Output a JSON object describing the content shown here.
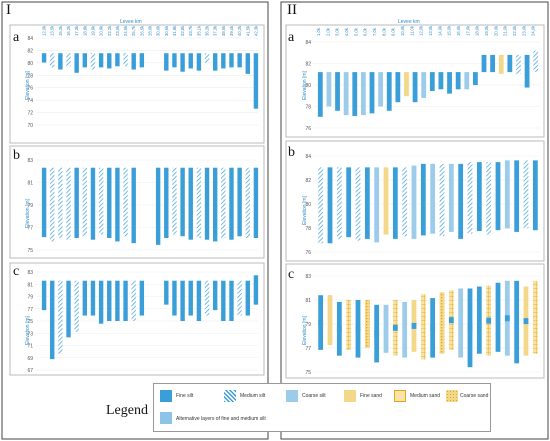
{
  "figure": {
    "col_left": "I",
    "col_right": "II",
    "col_left_axis": "Levee km",
    "col_right_axis": "Levee km",
    "y_label": "Elevation [m]"
  },
  "panels_left": [
    {
      "letter": "a",
      "ticks": [
        "84",
        "82",
        "80",
        "78",
        "76",
        "74",
        "72",
        "70"
      ],
      "ymin": 69,
      "ymax": 85,
      "bars": [
        [
          80.5,
          82.2,
          "fine"
        ],
        [
          79.6,
          82.2,
          "medium"
        ],
        [
          79.2,
          82.2,
          "fine"
        ],
        [
          79.8,
          82.2,
          "medium"
        ],
        [
          78.6,
          82.2,
          "fine"
        ],
        [
          79.6,
          82.2,
          "fine"
        ],
        [
          79.2,
          82.2,
          "medium"
        ],
        [
          79.6,
          82.2,
          "fine"
        ],
        [
          79.4,
          82.2,
          "fine"
        ],
        [
          79.8,
          82.2,
          "fine"
        ],
        [
          79.8,
          82.2,
          "medium"
        ],
        [
          79.2,
          82.2,
          "fine"
        ],
        [
          79.6,
          82.2,
          "fine"
        ],
        [
          null,
          null,
          ""
        ],
        [
          null,
          null,
          ""
        ],
        [
          79.0,
          82.2,
          "fine"
        ],
        [
          79.6,
          82.2,
          "fine"
        ],
        [
          78.8,
          82.2,
          "fine"
        ],
        [
          79.4,
          82.2,
          "fine"
        ],
        [
          79.0,
          82.2,
          "fine"
        ],
        [
          80.4,
          82.2,
          "medium"
        ],
        [
          79.0,
          82.2,
          "fine"
        ],
        [
          79.4,
          82.2,
          "fine"
        ],
        [
          79.6,
          82.2,
          "fine"
        ],
        [
          79.6,
          82.2,
          "fine"
        ],
        [
          78.4,
          82.2,
          "fine"
        ],
        [
          72.0,
          82.2,
          "fine"
        ]
      ],
      "axis_top": [
        "12,0k",
        "13,5k",
        "15,3k",
        "16,2k",
        "17,3k",
        "18,8k",
        "19,9k",
        "20,9k",
        "22,2k",
        "23,0k",
        "24,5k",
        "25,7k",
        "26,5k",
        "28,0k",
        "30,0k",
        "30,6k",
        "31,8k",
        "32,8k",
        "33,7k",
        "35,1k",
        "36,2k",
        "37,3k",
        "38,5k",
        "39,4k",
        "40,2k",
        "41,5k",
        "42,3k"
      ]
    },
    {
      "letter": "b",
      "ticks": [
        "83",
        "81",
        "79",
        "77",
        "75"
      ],
      "ymin": 74,
      "ymax": 84.5,
      "bars": [
        [
          75.5,
          83.6,
          "fine"
        ],
        [
          75.0,
          83.6,
          "medium"
        ],
        [
          75.4,
          83.6,
          "medium"
        ],
        [
          75.2,
          83.6,
          "medium"
        ],
        [
          75.4,
          83.6,
          "fine"
        ],
        [
          75.6,
          83.6,
          "medium"
        ],
        [
          75.2,
          83.6,
          "fine"
        ],
        [
          75.8,
          83.6,
          "medium"
        ],
        [
          75.4,
          83.6,
          "fine"
        ],
        [
          75.0,
          83.6,
          "fine"
        ],
        [
          75.6,
          83.6,
          "medium"
        ],
        [
          74.8,
          83.6,
          "fine"
        ],
        [
          null,
          null,
          ""
        ],
        [
          null,
          null,
          ""
        ],
        [
          74.6,
          83.6,
          "fine"
        ],
        [
          75.4,
          83.6,
          "fine"
        ],
        [
          75.8,
          83.6,
          "medium"
        ],
        [
          75.6,
          83.6,
          "fine"
        ],
        [
          75.2,
          83.6,
          "fine"
        ],
        [
          75.4,
          83.6,
          "medium"
        ],
        [
          75.2,
          83.6,
          "fine"
        ],
        [
          75.0,
          83.6,
          "fine"
        ],
        [
          75.4,
          83.6,
          "medium"
        ],
        [
          75.2,
          83.6,
          "fine"
        ],
        [
          75.6,
          83.6,
          "fine"
        ],
        [
          75.4,
          83.6,
          "medium"
        ],
        [
          75.4,
          83.6,
          "fine"
        ]
      ]
    },
    {
      "letter": "c",
      "ticks": [
        "83",
        "81",
        "79",
        "77",
        "75",
        "73",
        "71",
        "69",
        "67"
      ],
      "ymin": 66,
      "ymax": 84,
      "bars": [
        [
          77.0,
          82.4,
          "fine"
        ],
        [
          68.0,
          82.4,
          "fine"
        ],
        [
          69.0,
          82.4,
          "medium"
        ],
        [
          72.0,
          82.4,
          "fine"
        ],
        [
          73.0,
          82.4,
          "medium"
        ],
        [
          76.0,
          82.4,
          "fine"
        ],
        [
          76.0,
          82.4,
          "fine"
        ],
        [
          74.5,
          82.4,
          "fine"
        ],
        [
          75.0,
          82.4,
          "fine"
        ],
        [
          75.0,
          82.4,
          "fine"
        ],
        [
          75.0,
          82.4,
          "fine"
        ],
        [
          75.0,
          82.4,
          "medium"
        ],
        [
          76.0,
          82.4,
          "fine"
        ],
        [
          null,
          null,
          ""
        ],
        [
          null,
          null,
          ""
        ],
        [
          78.0,
          82.4,
          "fine"
        ],
        [
          76.0,
          82.4,
          "fine"
        ],
        [
          75.0,
          82.4,
          "fine"
        ],
        [
          76.0,
          82.4,
          "fine"
        ],
        [
          75.0,
          82.4,
          "fine"
        ],
        [
          76.0,
          82.4,
          "medium"
        ],
        [
          77.0,
          82.4,
          "fine"
        ],
        [
          75.0,
          82.4,
          "fine"
        ],
        [
          75.0,
          82.4,
          "fine"
        ],
        [
          76.0,
          82.4,
          "medium"
        ],
        [
          76.0,
          82.4,
          "fine"
        ],
        [
          78.0,
          83.4,
          "fine"
        ]
      ]
    }
  ],
  "panels_right": [
    {
      "letter": "a",
      "ticks": [
        "84",
        "82",
        "80",
        "78",
        "76"
      ],
      "ymin": 75.5,
      "ymax": 85.5,
      "axis_top": [
        "1,0k",
        "2,0k",
        "3,0k",
        "4,0k",
        "5,0k",
        "6,0k",
        "7,0k",
        "8,0k",
        "9,0k",
        "10,0k",
        "11,0k",
        "12,0k",
        "13,0k",
        "14,0k",
        "15,0k",
        "16,0k",
        "17,0k",
        "18,0k",
        "19,0k",
        "20,0k",
        "21,0k",
        "22,0k",
        "23,0k",
        "24,0k"
      ]
    },
    {
      "letter": "b",
      "ticks": [
        "84",
        "82",
        "80",
        "78",
        "76"
      ],
      "ymin": 74.5,
      "ymax": 85.5
    },
    {
      "letter": "c",
      "ticks": [
        "83",
        "81",
        "79",
        "77",
        "75"
      ],
      "ymin": 74.5,
      "ymax": 84.5
    }
  ],
  "legend": {
    "title": "Legend",
    "items": [
      {
        "key": "fine",
        "label": "Fine silt",
        "color": "#3a9fd8"
      },
      {
        "key": "medium",
        "label": "Medium silt",
        "color": "#3a9fd8"
      },
      {
        "key": "coarse",
        "label": "Coarse silt",
        "color": "#9dcbea"
      },
      {
        "key": "finesand",
        "label": "Fine sand",
        "color": "#f3d88a"
      },
      {
        "key": "medsand",
        "label": "Medium sand",
        "color": "#f0c560"
      },
      {
        "key": "coarsesand",
        "label": "Coarse sand",
        "color": "#f0c560"
      },
      {
        "key": "alt",
        "label": "Alternative layers of fine and medium silt",
        "color": "#8ec3e8"
      }
    ]
  }
}
